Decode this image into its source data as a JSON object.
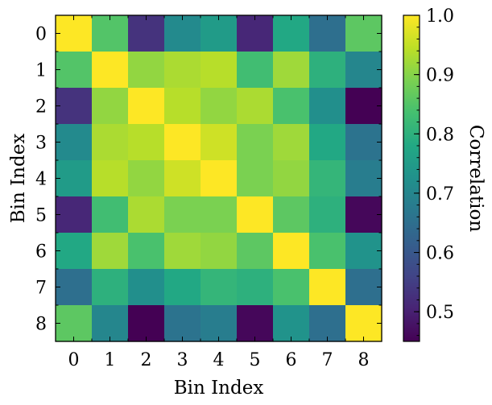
{
  "chart_data": {
    "type": "heatmap",
    "title": "",
    "xlabel": "Bin Index",
    "ylabel": "Bin Index",
    "x_categories": [
      "0",
      "1",
      "2",
      "3",
      "4",
      "5",
      "6",
      "7",
      "8"
    ],
    "y_categories": [
      "0",
      "1",
      "2",
      "3",
      "4",
      "5",
      "6",
      "7",
      "8"
    ],
    "colorbar_label": "Correlation",
    "colorbar_ticks": [
      "0.5",
      "0.6",
      "0.7",
      "0.8",
      "0.9",
      "1.0"
    ],
    "colorbar_tick_values": [
      0.5,
      0.6,
      0.7,
      0.8,
      0.9,
      1.0
    ],
    "vmin": 0.45,
    "vmax": 1.0,
    "colormap": "viridis",
    "values": [
      [
        1.0,
        0.85,
        0.53,
        0.71,
        0.75,
        0.51,
        0.78,
        0.65,
        0.86
      ],
      [
        0.85,
        1.0,
        0.91,
        0.93,
        0.94,
        0.83,
        0.92,
        0.8,
        0.7
      ],
      [
        0.53,
        0.91,
        1.0,
        0.94,
        0.91,
        0.93,
        0.84,
        0.72,
        0.45
      ],
      [
        0.71,
        0.93,
        0.94,
        1.0,
        0.96,
        0.89,
        0.92,
        0.78,
        0.66
      ],
      [
        0.75,
        0.94,
        0.91,
        0.96,
        1.0,
        0.89,
        0.91,
        0.81,
        0.68
      ],
      [
        0.51,
        0.83,
        0.93,
        0.89,
        0.89,
        1.0,
        0.86,
        0.8,
        0.46
      ],
      [
        0.78,
        0.92,
        0.84,
        0.92,
        0.91,
        0.86,
        1.0,
        0.84,
        0.73
      ],
      [
        0.65,
        0.8,
        0.72,
        0.78,
        0.81,
        0.8,
        0.84,
        1.0,
        0.65
      ],
      [
        0.86,
        0.7,
        0.45,
        0.66,
        0.68,
        0.46,
        0.73,
        0.65,
        1.0
      ]
    ]
  }
}
